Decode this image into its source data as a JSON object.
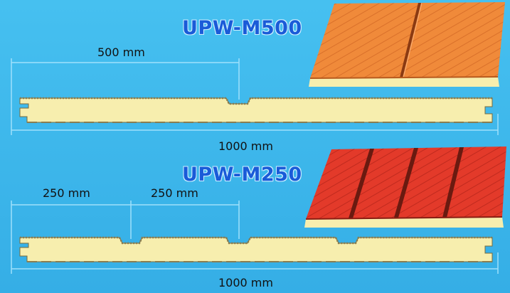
{
  "panels": [
    {
      "model": "UPW-M500",
      "module_label": "500 mm",
      "total_label": "1000 mm",
      "facing_color": "#f08a3a",
      "facing_dark": "#c7611e"
    },
    {
      "model": "UPW-M250",
      "module_labels": [
        "250 mm",
        "250 mm"
      ],
      "total_label": "1000 mm",
      "facing_color": "#e33a2a",
      "facing_dark": "#b3221a"
    }
  ],
  "colors": {
    "background": "#3fb9ec",
    "core": "#f7eeae",
    "dimension_line": "#9fe0fb"
  }
}
